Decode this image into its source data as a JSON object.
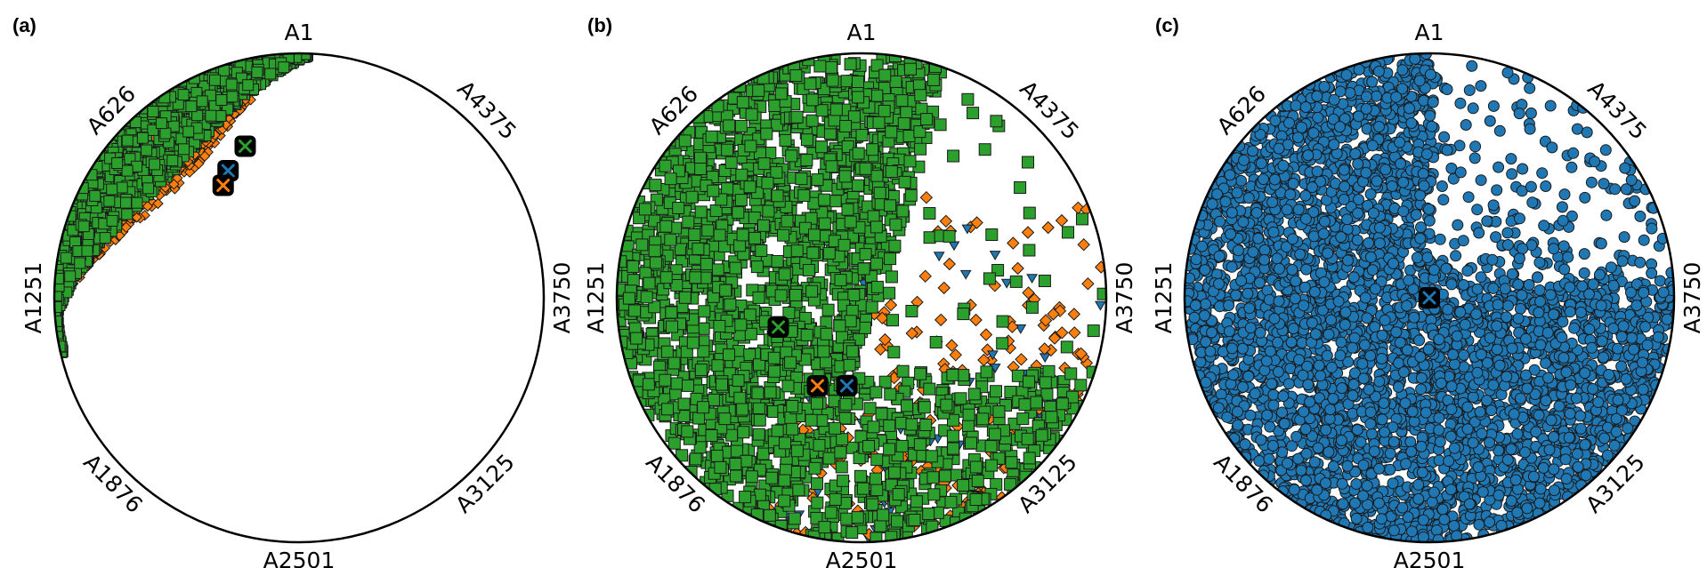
{
  "chart_data": [
    {
      "type": "scatter",
      "panel_label": "(a)",
      "axis_labels": [
        "A1",
        "A626",
        "A1251",
        "A1876",
        "A2501",
        "A3125",
        "A3750",
        "A4375"
      ],
      "series_colors": {
        "green": "#2ca02c",
        "orange": "#ff7f0e",
        "blue": "#1f77b4"
      },
      "centroids": {
        "green": [
          -0.22,
          0.62
        ],
        "blue": [
          -0.29,
          0.52
        ],
        "orange": [
          -0.31,
          0.46
        ]
      }
    },
    {
      "type": "scatter",
      "panel_label": "(b)",
      "axis_labels": [
        "A1",
        "A626",
        "A1251",
        "A1876",
        "A2501",
        "A3125",
        "A3750",
        "A4375"
      ],
      "series_colors": {
        "green": "#2ca02c",
        "orange": "#ff7f0e",
        "blue": "#1f77b4"
      },
      "centroids": {
        "green": [
          -0.34,
          -0.12
        ],
        "orange": [
          -0.18,
          -0.36
        ],
        "blue": [
          -0.06,
          -0.36
        ]
      }
    },
    {
      "type": "scatter",
      "panel_label": "(c)",
      "axis_labels": [
        "A1",
        "A626",
        "A1251",
        "A1876",
        "A2501",
        "A3125",
        "A3750",
        "A4375"
      ],
      "series_colors": {
        "blue": "#1f77b4"
      },
      "centroids": {
        "blue": [
          0.0,
          0.0
        ]
      }
    }
  ]
}
